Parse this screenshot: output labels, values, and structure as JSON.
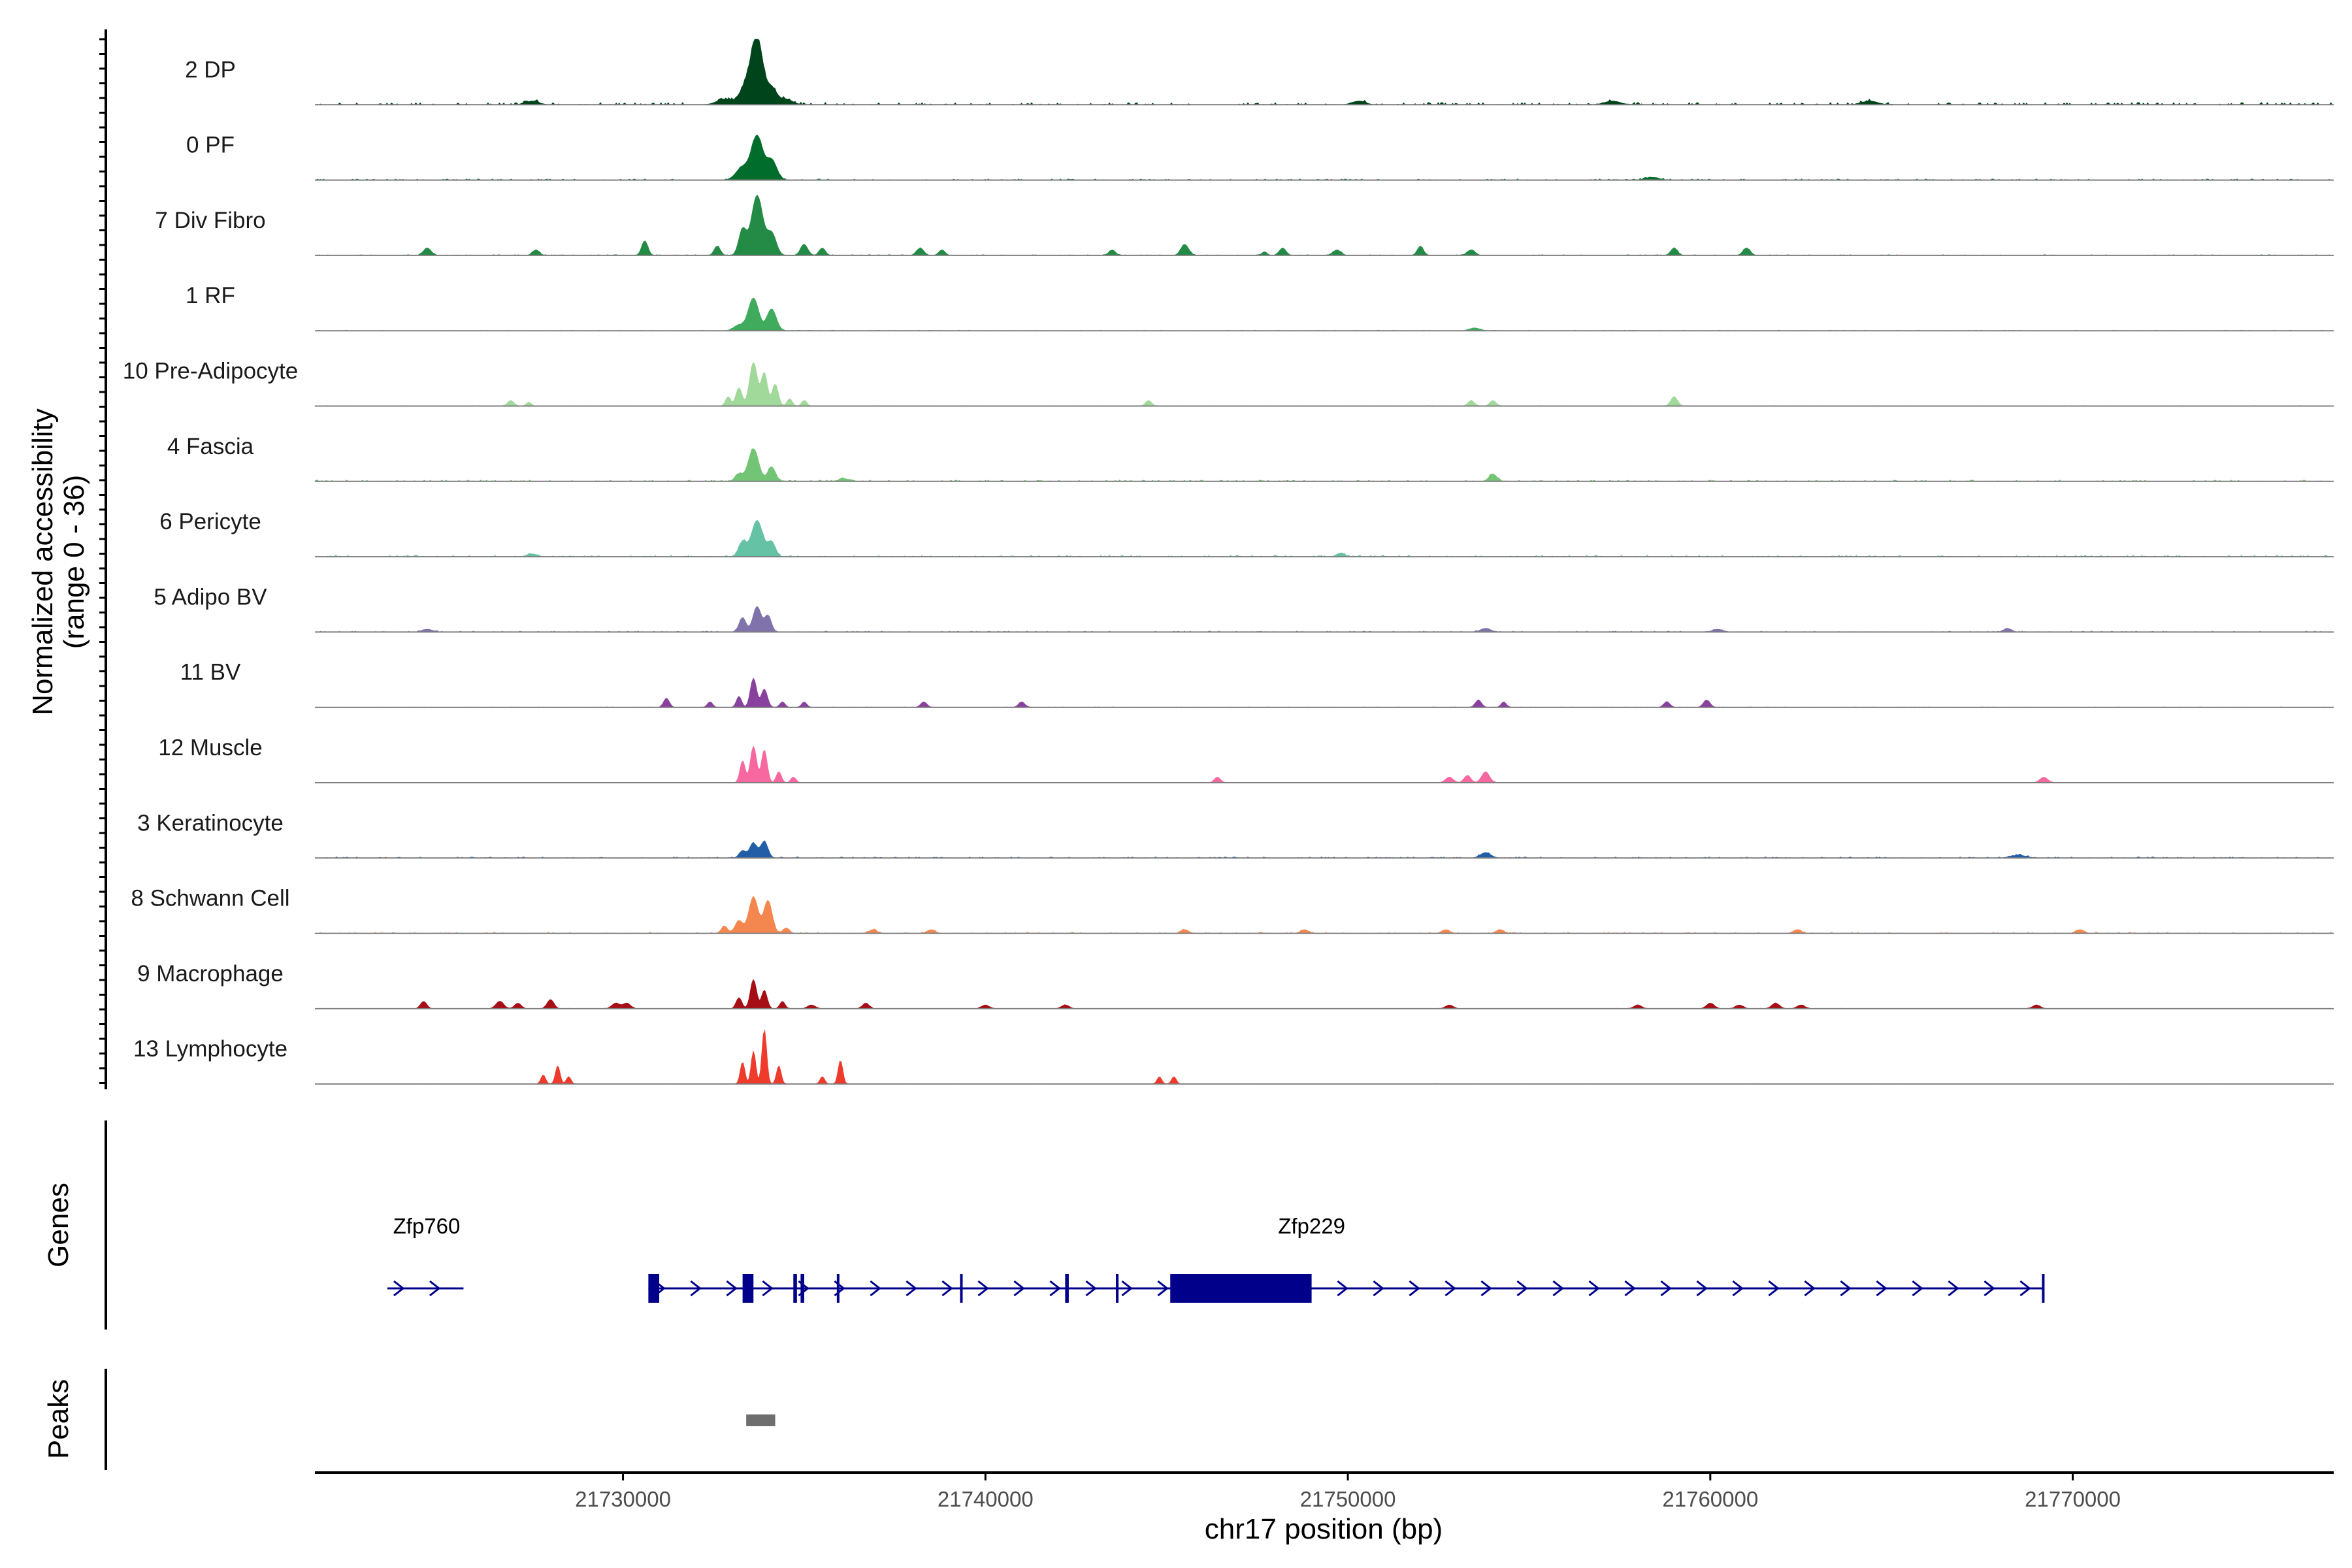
{
  "chart_data": {
    "type": "genome-coverage",
    "ylabel": "Normalized accessibility",
    "ylabel_range": "(range 0 - 36)",
    "xlabel": "chr17 position (bp)",
    "x_range": [
      21721500,
      21777200
    ],
    "x_ticks": [
      21730000,
      21740000,
      21750000,
      21760000,
      21770000
    ],
    "y_range": [
      0,
      36
    ],
    "panel_labels": {
      "genes": "Genes",
      "peaks": "Peaks"
    },
    "tracks": [
      {
        "name": "2 DP",
        "color": "#00441b",
        "peaks": [
          [
            21733700,
            36,
            220
          ],
          [
            21733400,
            10,
            250
          ],
          [
            21734100,
            9,
            200
          ],
          [
            21732800,
            3,
            300
          ],
          [
            21734500,
            3,
            250
          ],
          [
            21727500,
            2,
            250
          ],
          [
            21764400,
            2,
            300
          ],
          [
            21757300,
            2,
            300
          ],
          [
            21750300,
            2,
            250
          ]
        ],
        "noise": 1.2,
        "seed": 11
      },
      {
        "name": "0 PF",
        "color": "#006d2c",
        "peaks": [
          [
            21733700,
            24,
            220
          ],
          [
            21734100,
            11,
            200
          ],
          [
            21733300,
            7,
            250
          ],
          [
            21758400,
            1.5,
            250
          ]
        ],
        "noise": 0.6,
        "seed": 12
      },
      {
        "name": "7 Div Fibro",
        "color": "#238b45",
        "peaks": [
          [
            21733700,
            33,
            220
          ],
          [
            21733300,
            14,
            150
          ],
          [
            21734100,
            12,
            180
          ],
          [
            21730600,
            8,
            120
          ],
          [
            21732600,
            5,
            120
          ],
          [
            21735000,
            6,
            140
          ],
          [
            21735500,
            4,
            120
          ],
          [
            21724600,
            4,
            150
          ],
          [
            21727600,
            3,
            130
          ],
          [
            21738200,
            4,
            140
          ],
          [
            21738800,
            3,
            120
          ],
          [
            21743500,
            3,
            120
          ],
          [
            21745500,
            6,
            150
          ],
          [
            21748200,
            4,
            130
          ],
          [
            21749700,
            3,
            150
          ],
          [
            21752000,
            5,
            120
          ],
          [
            21753400,
            3,
            150
          ],
          [
            21759000,
            4,
            130
          ],
          [
            21761000,
            4,
            140
          ],
          [
            21747700,
            2,
            100
          ]
        ],
        "noise": 0.4,
        "seed": 13
      },
      {
        "name": "1 RF",
        "color": "#41ab5d",
        "peaks": [
          [
            21733600,
            18,
            200
          ],
          [
            21734100,
            12,
            180
          ],
          [
            21733200,
            3,
            200
          ],
          [
            21753500,
            1.5,
            200
          ]
        ],
        "noise": 0.3,
        "seed": 14
      },
      {
        "name": "10 Pre-Adipocyte",
        "color": "#a1d99b",
        "peaks": [
          [
            21733600,
            24,
            150
          ],
          [
            21733900,
            18,
            120
          ],
          [
            21733200,
            10,
            120
          ],
          [
            21734200,
            12,
            120
          ],
          [
            21732900,
            5,
            100
          ],
          [
            21734600,
            4,
            100
          ],
          [
            21735000,
            3,
            100
          ],
          [
            21726900,
            3,
            120
          ],
          [
            21744500,
            3,
            120
          ],
          [
            21753400,
            3,
            120
          ],
          [
            21754000,
            3,
            120
          ],
          [
            21759000,
            5,
            130
          ],
          [
            21727400,
            2,
            100
          ]
        ],
        "noise": 0.3,
        "seed": 15
      },
      {
        "name": "4 Fascia",
        "color": "#74c476",
        "peaks": [
          [
            21733600,
            18,
            200
          ],
          [
            21734100,
            8,
            150
          ],
          [
            21733200,
            4,
            150
          ],
          [
            21754000,
            4,
            150
          ],
          [
            21736100,
            1.5,
            200
          ]
        ],
        "noise": 0.7,
        "seed": 16
      },
      {
        "name": "6 Pericyte",
        "color": "#66c2a4",
        "peaks": [
          [
            21733700,
            20,
            220
          ],
          [
            21733300,
            8,
            150
          ],
          [
            21734100,
            8,
            150
          ],
          [
            21749800,
            2,
            150
          ],
          [
            21727500,
            1.5,
            200
          ]
        ],
        "noise": 0.7,
        "seed": 17
      },
      {
        "name": "5 Adipo BV",
        "color": "#8073ac",
        "peaks": [
          [
            21733700,
            14,
            160
          ],
          [
            21733300,
            8,
            130
          ],
          [
            21734000,
            9,
            130
          ],
          [
            21753800,
            2,
            200
          ],
          [
            21768200,
            2,
            150
          ],
          [
            21724600,
            1.5,
            200
          ],
          [
            21760200,
            1.5,
            200
          ]
        ],
        "noise": 0.5,
        "seed": 18
      },
      {
        "name": "11 BV",
        "color": "#88419d",
        "peaks": [
          [
            21733600,
            16,
            120
          ],
          [
            21733900,
            10,
            120
          ],
          [
            21733200,
            6,
            100
          ],
          [
            21734400,
            3,
            100
          ],
          [
            21731200,
            5,
            110
          ],
          [
            21732400,
            3,
            100
          ],
          [
            21738300,
            3,
            120
          ],
          [
            21741000,
            3,
            120
          ],
          [
            21753600,
            4,
            120
          ],
          [
            21754300,
            3,
            100
          ],
          [
            21758800,
            3,
            120
          ],
          [
            21759900,
            4,
            130
          ],
          [
            21735000,
            3,
            100
          ]
        ],
        "noise": 0.2,
        "seed": 19
      },
      {
        "name": "12 Muscle",
        "color": "#f768a1",
        "peaks": [
          [
            21733600,
            20,
            120
          ],
          [
            21733900,
            18,
            110
          ],
          [
            21733300,
            12,
            100
          ],
          [
            21734300,
            6,
            100
          ],
          [
            21734700,
            3,
            100
          ],
          [
            21746400,
            3,
            120
          ],
          [
            21752800,
            3,
            150
          ],
          [
            21753300,
            4,
            130
          ],
          [
            21753800,
            6,
            150
          ],
          [
            21769200,
            3,
            150
          ]
        ],
        "noise": 0.2,
        "seed": 20
      },
      {
        "name": "3 Keratinocyte",
        "color": "#225ea8",
        "peaks": [
          [
            21733600,
            8,
            150
          ],
          [
            21733900,
            9,
            140
          ],
          [
            21733300,
            4,
            130
          ],
          [
            21753800,
            3,
            200
          ],
          [
            21768500,
            1.5,
            300
          ]
        ],
        "noise": 0.6,
        "seed": 21
      },
      {
        "name": "8 Schwann Cell",
        "color": "#f4874f",
        "peaks": [
          [
            21733600,
            20,
            180
          ],
          [
            21734000,
            18,
            160
          ],
          [
            21733200,
            7,
            150
          ],
          [
            21732800,
            4,
            120
          ],
          [
            21734500,
            3,
            120
          ],
          [
            21738500,
            2,
            150
          ],
          [
            21745500,
            2,
            150
          ],
          [
            21748800,
            2,
            150
          ],
          [
            21752700,
            2,
            150
          ],
          [
            21754200,
            2,
            150
          ],
          [
            21762400,
            2,
            150
          ],
          [
            21770200,
            2,
            150
          ],
          [
            21736900,
            2,
            150
          ]
        ],
        "noise": 0.5,
        "seed": 22
      },
      {
        "name": "9 Macrophage",
        "color": "#a50f15",
        "peaks": [
          [
            21733600,
            16,
            120
          ],
          [
            21733900,
            10,
            110
          ],
          [
            21733200,
            6,
            110
          ],
          [
            21734400,
            4,
            100
          ],
          [
            21724500,
            4,
            120
          ],
          [
            21726600,
            4,
            150
          ],
          [
            21727100,
            3,
            130
          ],
          [
            21728000,
            5,
            130
          ],
          [
            21729800,
            3,
            150
          ],
          [
            21730100,
            3,
            150
          ],
          [
            21735200,
            2,
            150
          ],
          [
            21736700,
            3,
            130
          ],
          [
            21742200,
            2,
            150
          ],
          [
            21740000,
            2,
            150
          ],
          [
            21752800,
            2,
            150
          ],
          [
            21758000,
            2,
            150
          ],
          [
            21760000,
            3,
            150
          ],
          [
            21760800,
            2,
            150
          ],
          [
            21761800,
            3,
            150
          ],
          [
            21762500,
            2,
            150
          ],
          [
            21769000,
            2,
            150
          ]
        ],
        "noise": 0.2,
        "seed": 23
      },
      {
        "name": "13 Lymphocyte",
        "color": "#ef3b2c",
        "peaks": [
          [
            21733900,
            30,
            90
          ],
          [
            21733600,
            18,
            90
          ],
          [
            21733300,
            12,
            90
          ],
          [
            21734300,
            10,
            90
          ],
          [
            21736000,
            13,
            90
          ],
          [
            21735500,
            4,
            90
          ],
          [
            21728200,
            10,
            90
          ],
          [
            21727800,
            5,
            90
          ],
          [
            21728500,
            4,
            90
          ],
          [
            21744800,
            4,
            90
          ],
          [
            21745200,
            4,
            90
          ]
        ],
        "noise": 0.1,
        "seed": 24
      }
    ],
    "genes": [
      {
        "name": "Zfp760",
        "start": 21723500,
        "end": 21725600,
        "strand": "+",
        "exons": []
      },
      {
        "name": "Zfp229",
        "start": 21730700,
        "end": 21769200,
        "strand": "+",
        "exons": [
          [
            21730700,
            21731000
          ],
          [
            21733300,
            21733600
          ],
          [
            21734700,
            21734800
          ],
          [
            21734900,
            21735000
          ],
          [
            21735900,
            21735950
          ],
          [
            21739300,
            21739350
          ],
          [
            21742200,
            21742300
          ],
          [
            21743600,
            21743650
          ],
          [
            21745100,
            21749000
          ],
          [
            21769150,
            21769200
          ]
        ]
      }
    ],
    "peak_regions": [
      [
        21733400,
        21734200
      ]
    ]
  }
}
